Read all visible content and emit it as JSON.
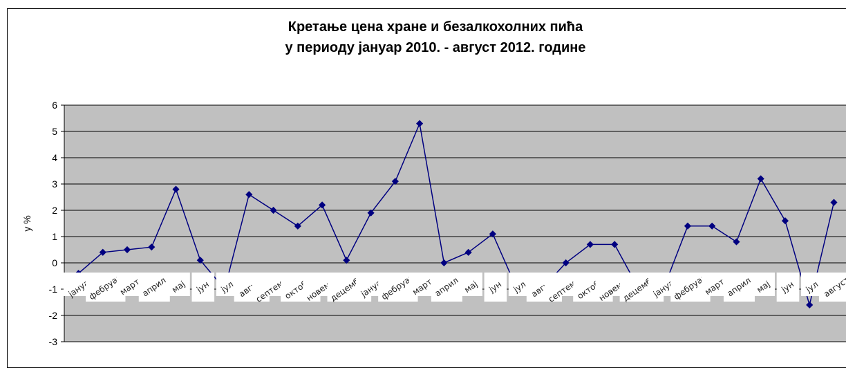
{
  "chart_data": {
    "type": "line",
    "title_line1": "Кретање цена хране и безалкохолних пића",
    "title_line2": "у периоду јануар 2010. - август 2012. године",
    "ylabel": "у %",
    "ylim": [
      -3,
      6
    ],
    "yticks": [
      6,
      5,
      4,
      3,
      2,
      1,
      0,
      -1,
      -2,
      -3
    ],
    "grid": true,
    "plot_background": "#c0c0c0",
    "line_color": "#000080",
    "categories": [
      "јануар",
      "фебруар",
      "март",
      "април",
      "мај",
      "јун",
      "јул",
      "август",
      "септембар",
      "октобар",
      "новембар",
      "децембар",
      "јануар",
      "фебруар",
      "март",
      "април",
      "мај",
      "јун",
      "јул",
      "август",
      "септембар",
      "октобар",
      "новембар",
      "децембар",
      "јануар",
      "фебруар",
      "март",
      "април",
      "мај",
      "јун",
      "јул",
      "август"
    ],
    "values": [
      -0.4,
      0.4,
      0.5,
      0.6,
      2.8,
      0.1,
      -1.0,
      2.6,
      2.0,
      1.4,
      2.2,
      0.1,
      1.9,
      3.1,
      5.3,
      0.0,
      0.4,
      1.1,
      -1.0,
      -1.0,
      0.0,
      0.7,
      0.7,
      -1.0,
      -1.0,
      1.4,
      1.4,
      0.8,
      3.2,
      1.6,
      -1.6,
      2.3
    ]
  }
}
